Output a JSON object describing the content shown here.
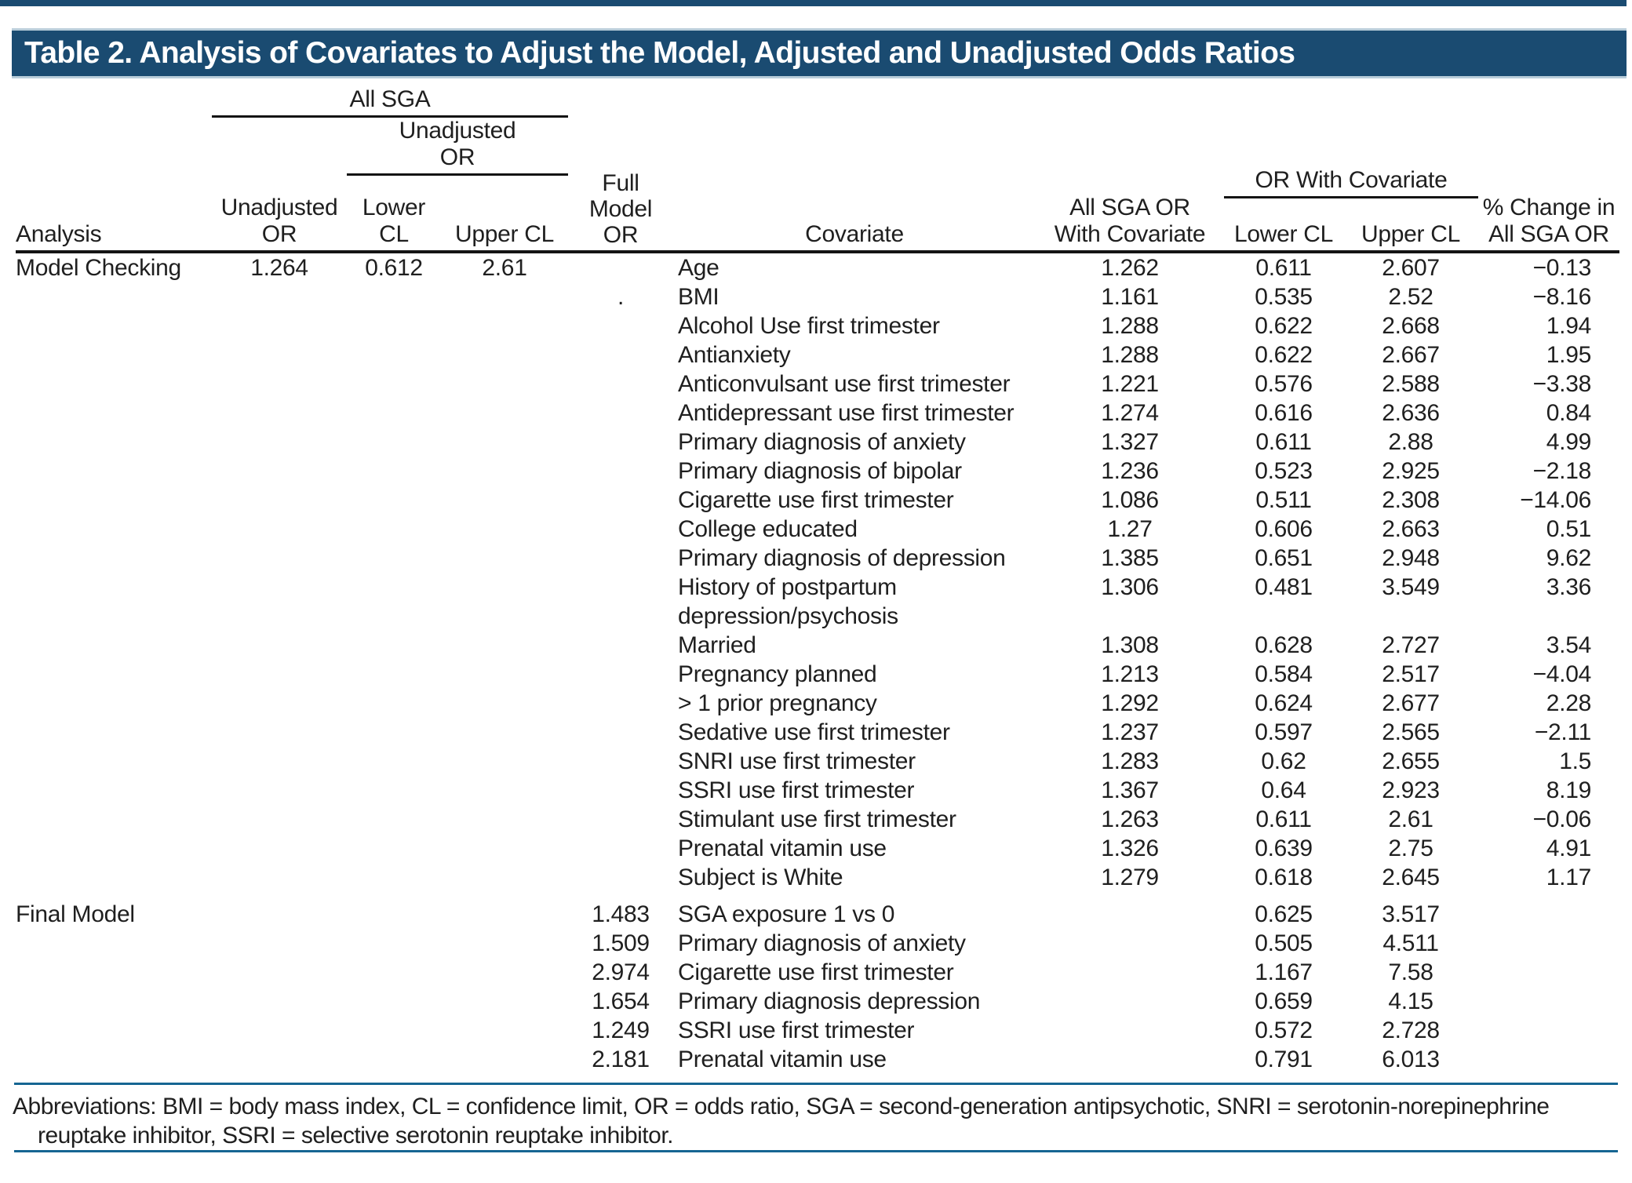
{
  "colors": {
    "title_bar_bg": "#1A4B71",
    "top_strip": "#1A4B71",
    "rule_blue": "#166592",
    "header_rule_black": "#141414",
    "title_text": "#ffffff",
    "body_text": "#1f1f1f"
  },
  "title": "Table 2. Analysis of Covariates to Adjust the Model, Adjusted and Unadjusted Odds Ratios",
  "header": {
    "group_all_sga": "All SGA",
    "group_unadjusted_or": "Unadjusted\nOR",
    "group_or_with_covariate": "OR With Covariate",
    "analysis": "Analysis",
    "unadjusted_or": "Unadjusted\nOR",
    "lower_cl": "Lower\nCL",
    "upper_cl": "Upper CL",
    "full_model_or": "Full\nModel\nOR",
    "covariate": "Covariate",
    "all_sga_or_with_covariate": "All SGA OR\nWith Covariate",
    "cov_lower_cl": "Lower CL",
    "cov_upper_cl": "Upper CL",
    "pct_change": "% Change in\nAll SGA OR"
  },
  "table": {
    "sections": [
      {
        "analysis": "Model Checking",
        "gap_before": false,
        "rows": [
          {
            "analysis": "Model Checking",
            "unadjusted_or": "1.264",
            "lower_cl": "0.612",
            "upper_cl": "2.61",
            "full_model_or": "",
            "covariate": "Age",
            "all_sga_or": "1.262",
            "or_lower_cl": "0.611",
            "or_upper_cl": "2.607",
            "pct_change": "−0.13"
          },
          {
            "full_model_or": ".",
            "covariate": "BMI",
            "all_sga_or": "1.161",
            "or_lower_cl": "0.535",
            "or_upper_cl": "2.52",
            "pct_change": "−8.16"
          },
          {
            "covariate": "Alcohol Use first trimester",
            "all_sga_or": "1.288",
            "or_lower_cl": "0.622",
            "or_upper_cl": "2.668",
            "pct_change": "1.94"
          },
          {
            "covariate": "Antianxiety",
            "all_sga_or": "1.288",
            "or_lower_cl": "0.622",
            "or_upper_cl": "2.667",
            "pct_change": "1.95"
          },
          {
            "covariate": "Anticonvulsant use first trimester",
            "all_sga_or": "1.221",
            "or_lower_cl": "0.576",
            "or_upper_cl": "2.588",
            "pct_change": "−3.38"
          },
          {
            "covariate": "Antidepressant use first trimester",
            "all_sga_or": "1.274",
            "or_lower_cl": "0.616",
            "or_upper_cl": "2.636",
            "pct_change": "0.84"
          },
          {
            "covariate": "Primary diagnosis of anxiety",
            "all_sga_or": "1.327",
            "or_lower_cl": "0.611",
            "or_upper_cl": "2.88",
            "pct_change": "4.99"
          },
          {
            "covariate": "Primary diagnosis of bipolar",
            "all_sga_or": "1.236",
            "or_lower_cl": "0.523",
            "or_upper_cl": "2.925",
            "pct_change": "−2.18"
          },
          {
            "covariate": "Cigarette use first trimester",
            "all_sga_or": "1.086",
            "or_lower_cl": "0.511",
            "or_upper_cl": "2.308",
            "pct_change": "−14.06"
          },
          {
            "covariate": "College educated",
            "all_sga_or": "1.27",
            "or_lower_cl": "0.606",
            "or_upper_cl": "2.663",
            "pct_change": "0.51"
          },
          {
            "covariate": "Primary diagnosis of depression",
            "all_sga_or": "1.385",
            "or_lower_cl": "0.651",
            "or_upper_cl": "2.948",
            "pct_change": "9.62"
          },
          {
            "covariate": "History of postpartum\ndepression/psychosis",
            "all_sga_or": "1.306",
            "or_lower_cl": "0.481",
            "or_upper_cl": "3.549",
            "pct_change": "3.36"
          },
          {
            "covariate": "Married",
            "all_sga_or": "1.308",
            "or_lower_cl": "0.628",
            "or_upper_cl": "2.727",
            "pct_change": "3.54"
          },
          {
            "covariate": "Pregnancy planned",
            "all_sga_or": "1.213",
            "or_lower_cl": "0.584",
            "or_upper_cl": "2.517",
            "pct_change": "−4.04"
          },
          {
            "covariate": "> 1 prior pregnancy",
            "all_sga_or": "1.292",
            "or_lower_cl": "0.624",
            "or_upper_cl": "2.677",
            "pct_change": "2.28"
          },
          {
            "covariate": "Sedative use first trimester",
            "all_sga_or": "1.237",
            "or_lower_cl": "0.597",
            "or_upper_cl": "2.565",
            "pct_change": "−2.11"
          },
          {
            "covariate": "SNRI use first trimester",
            "all_sga_or": "1.283",
            "or_lower_cl": "0.62",
            "or_upper_cl": "2.655",
            "pct_change": "1.5"
          },
          {
            "covariate": "SSRI use first trimester",
            "all_sga_or": "1.367",
            "or_lower_cl": "0.64",
            "or_upper_cl": "2.923",
            "pct_change": "8.19"
          },
          {
            "covariate": "Stimulant use first trimester",
            "all_sga_or": "1.263",
            "or_lower_cl": "0.611",
            "or_upper_cl": "2.61",
            "pct_change": "−0.06"
          },
          {
            "covariate": "Prenatal vitamin use",
            "all_sga_or": "1.326",
            "or_lower_cl": "0.639",
            "or_upper_cl": "2.75",
            "pct_change": "4.91"
          },
          {
            "covariate": "Subject is White",
            "all_sga_or": "1.279",
            "or_lower_cl": "0.618",
            "or_upper_cl": "2.645",
            "pct_change": "1.17"
          }
        ]
      },
      {
        "analysis": "Final Model",
        "gap_before": true,
        "rows": [
          {
            "analysis": "Final Model",
            "full_model_or": "1.483",
            "covariate": "SGA exposure 1 vs 0",
            "or_lower_cl": "0.625",
            "or_upper_cl": "3.517"
          },
          {
            "full_model_or": "1.509",
            "covariate": "Primary diagnosis of anxiety",
            "or_lower_cl": "0.505",
            "or_upper_cl": "4.511"
          },
          {
            "full_model_or": "2.974",
            "covariate": "Cigarette use first trimester",
            "or_lower_cl": "1.167",
            "or_upper_cl": "7.58"
          },
          {
            "full_model_or": "1.654",
            "covariate": "Primary diagnosis depression",
            "or_lower_cl": "0.659",
            "or_upper_cl": "4.15"
          },
          {
            "full_model_or": "1.249",
            "covariate": "SSRI use first trimester",
            "or_lower_cl": "0.572",
            "or_upper_cl": "2.728"
          },
          {
            "full_model_or": "2.181",
            "covariate": "Prenatal vitamin use",
            "or_lower_cl": "0.791",
            "or_upper_cl": "6.013"
          }
        ]
      }
    ]
  },
  "footnote": "Abbreviations: BMI = body mass index, CL = confidence limit, OR = odds ratio, SGA = second-generation antipsychotic, SNRI = serotonin-norepinephrine\nreuptake inhibitor, SSRI = selective serotonin reuptake inhibitor."
}
